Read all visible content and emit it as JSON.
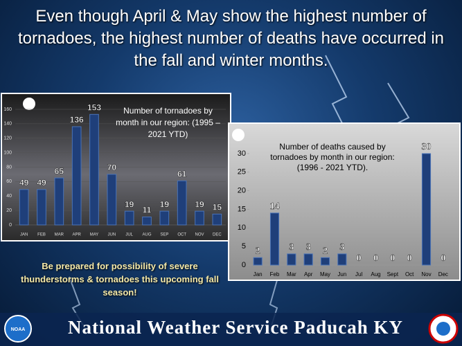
{
  "title": "Even though April & May show the highest number of tornadoes, the highest number of deaths have occurred in the fall and winter months.",
  "chart_data": [
    {
      "type": "bar",
      "title": "Number of tornadoes by month in our region: (1995 – 2021 YTD)",
      "categories": [
        "JAN",
        "FEB",
        "MAR",
        "APR",
        "MAY",
        "JUN",
        "JUL",
        "AUG",
        "SEP",
        "OCT",
        "NOV",
        "DEC"
      ],
      "values": [
        49,
        49,
        65,
        136,
        153,
        70,
        19,
        11,
        19,
        61,
        19,
        15
      ],
      "color": "#1f3f7a",
      "ylim": [
        0,
        160
      ],
      "yticks": [
        0,
        20,
        40,
        60,
        80,
        100,
        120,
        140,
        160
      ],
      "grid": true
    },
    {
      "type": "bar",
      "title": "Number of deaths caused by tornadoes by month in our region: (1996 - 2021 YTD).",
      "categories": [
        "Jan",
        "Feb",
        "Mar",
        "Apr",
        "May",
        "Jun",
        "Jul",
        "Aug",
        "Sept",
        "Oct",
        "Nov",
        "Dec"
      ],
      "values": [
        2,
        14,
        3,
        3,
        2,
        3,
        0,
        0,
        0,
        0,
        30,
        0
      ],
      "color": "#1f3f7a",
      "ylim": [
        0,
        30
      ],
      "yticks": [
        0,
        5,
        10,
        15,
        20,
        25,
        30
      ],
      "grid": false
    }
  ],
  "note": "Be prepared for possibility of severe thunderstorms & tornadoes this upcoming fall season!",
  "footer": "National Weather Service Paducah KY",
  "noaa_logo": "NOAA"
}
